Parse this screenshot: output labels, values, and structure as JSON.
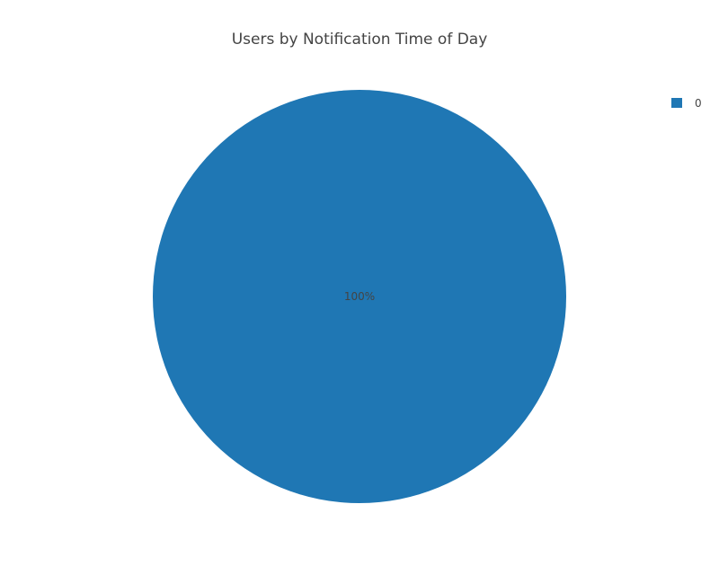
{
  "chart_data": {
    "type": "pie",
    "title": "Users by Notification Time of Day",
    "labels": [
      "0"
    ],
    "values": [
      1
    ],
    "slice_labels": [
      "100%"
    ],
    "colors": [
      "#1f77b4"
    ],
    "legend_placement": "top-right"
  }
}
